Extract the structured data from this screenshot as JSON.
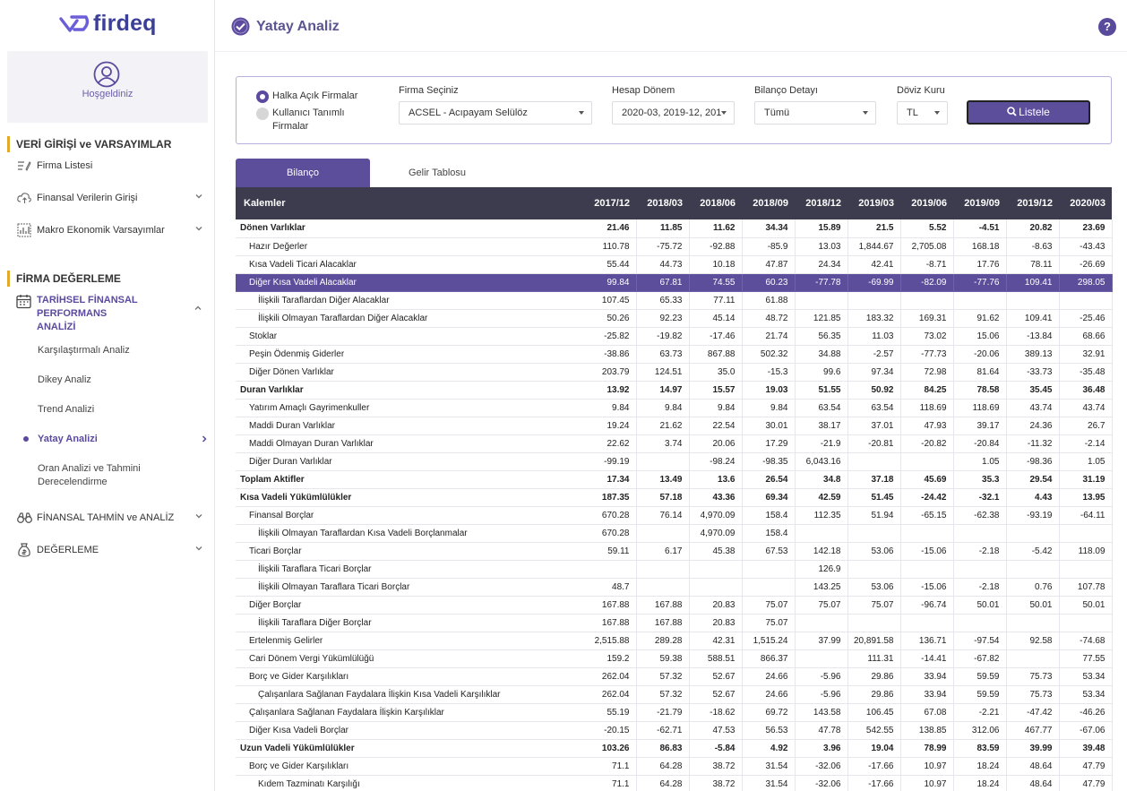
{
  "app": {
    "logo_text": "firdeq",
    "page_title": "Yatay Analiz",
    "help_label": "?"
  },
  "sidebar": {
    "welcome": "Hoşgeldiniz",
    "section1": "VERİ GİRİŞİ ve VARSAYIMLAR",
    "items1": [
      {
        "label": "Firma Listesi",
        "icon": "edit-list-icon"
      },
      {
        "label": "Finansal Verilerin Girişi",
        "icon": "cloud-upload-icon"
      },
      {
        "label": "Makro Ekonomik Varsayımlar",
        "icon": "chart-icon"
      }
    ],
    "section2": "FİRMA DEĞERLEME",
    "tfp_label": "TARİHSEL FİNANSAL PERFORMANS ANALİZİ",
    "subitems": [
      "Karşılaştırmalı Analiz",
      "Dikey Analiz",
      "Trend Analizi",
      "Yatay Analizi",
      "Oran Analizi ve Tahmini Derecelendirme"
    ],
    "items2": [
      {
        "label": "FİNANSAL TAHMİN ve ANALİZ",
        "icon": "binoculars-icon"
      },
      {
        "label": "DEĞERLEME",
        "icon": "money-bag-icon"
      }
    ]
  },
  "filter": {
    "radio1": "Halka Açık Firmalar",
    "radio2": "Kullanıcı Tanımlı Firmalar",
    "firma_label": "Firma Seçiniz",
    "firma_value": "ACSEL - Acıpayam Selülöz",
    "donem_label": "Hesap Dönem",
    "donem_value": "2020-03, 2019-12, 201",
    "bilanco_label": "Bilanço Detayı",
    "bilanco_value": "Tümü",
    "doviz_label": "Döviz Kuru",
    "doviz_value": "TL",
    "list_button": "Listele"
  },
  "tabs": [
    "Bilanço",
    "Gelir Tablosu"
  ],
  "table": {
    "headers": [
      "Kalemler",
      "2017/12",
      "2018/03",
      "2018/06",
      "2018/09",
      "2018/12",
      "2019/03",
      "2019/06",
      "2019/09",
      "2019/12",
      "2020/03"
    ],
    "rows": [
      {
        "label": "Dönen Varlıklar",
        "level": 0,
        "bold": true,
        "values": [
          "21.46",
          "11.85",
          "11.62",
          "34.34",
          "15.89",
          "21.5",
          "5.52",
          "-4.51",
          "20.82",
          "23.69"
        ]
      },
      {
        "label": "Hazır Değerler",
        "level": 1,
        "values": [
          "110.78",
          "-75.72",
          "-92.88",
          "-85.9",
          "13.03",
          "1,844.67",
          "2,705.08",
          "168.18",
          "-8.63",
          "-43.43"
        ]
      },
      {
        "label": "Kısa Vadeli Ticari Alacaklar",
        "level": 1,
        "values": [
          "55.44",
          "44.73",
          "10.18",
          "47.87",
          "24.34",
          "42.41",
          "-8.71",
          "17.76",
          "78.11",
          "-26.69"
        ]
      },
      {
        "label": "Diğer Kısa Vadeli Alacaklar",
        "level": 1,
        "highlight": true,
        "values": [
          "99.84",
          "67.81",
          "74.55",
          "60.23",
          "-77.78",
          "-69.99",
          "-82.09",
          "-77.76",
          "109.41",
          "298.05"
        ]
      },
      {
        "label": "İlişkili Taraflardan Diğer Alacaklar",
        "level": 2,
        "values": [
          "107.45",
          "65.33",
          "77.11",
          "61.88",
          "",
          "",
          "",
          "",
          "",
          ""
        ]
      },
      {
        "label": "İlişkili Olmayan Taraflardan Diğer Alacaklar",
        "level": 2,
        "values": [
          "50.26",
          "92.23",
          "45.14",
          "48.72",
          "121.85",
          "183.32",
          "169.31",
          "91.62",
          "109.41",
          "-25.46"
        ]
      },
      {
        "label": "Stoklar",
        "level": 1,
        "values": [
          "-25.82",
          "-19.82",
          "-17.46",
          "21.74",
          "56.35",
          "11.03",
          "73.02",
          "15.06",
          "-13.84",
          "68.66"
        ]
      },
      {
        "label": "Peşin Ödenmiş Giderler",
        "level": 1,
        "values": [
          "-38.86",
          "63.73",
          "867.88",
          "502.32",
          "34.88",
          "-2.57",
          "-77.73",
          "-20.06",
          "389.13",
          "32.91"
        ]
      },
      {
        "label": "Diğer Dönen Varlıklar",
        "level": 1,
        "values": [
          "203.79",
          "124.51",
          "35.0",
          "-15.3",
          "99.6",
          "97.34",
          "72.98",
          "81.64",
          "-33.73",
          "-35.48"
        ]
      },
      {
        "label": "Duran Varlıklar",
        "level": 0,
        "bold": true,
        "values": [
          "13.92",
          "14.97",
          "15.57",
          "19.03",
          "51.55",
          "50.92",
          "84.25",
          "78.58",
          "35.45",
          "36.48"
        ]
      },
      {
        "label": "Yatırım Amaçlı Gayrimenkuller",
        "level": 1,
        "values": [
          "9.84",
          "9.84",
          "9.84",
          "9.84",
          "63.54",
          "63.54",
          "118.69",
          "118.69",
          "43.74",
          "43.74"
        ]
      },
      {
        "label": "Maddi Duran Varlıklar",
        "level": 1,
        "values": [
          "19.24",
          "21.62",
          "22.54",
          "30.01",
          "38.17",
          "37.01",
          "47.93",
          "39.17",
          "24.36",
          "26.7"
        ]
      },
      {
        "label": "Maddi Olmayan Duran Varlıklar",
        "level": 1,
        "values": [
          "22.62",
          "3.74",
          "20.06",
          "17.29",
          "-21.9",
          "-20.81",
          "-20.82",
          "-20.84",
          "-11.32",
          "-2.14"
        ]
      },
      {
        "label": "Diğer Duran Varlıklar",
        "level": 1,
        "values": [
          "-99.19",
          "",
          "-98.24",
          "-98.35",
          "6,043.16",
          "",
          "",
          "1.05",
          "-98.36",
          "1.05"
        ]
      },
      {
        "label": "Toplam Aktifler",
        "level": 0,
        "bold": true,
        "values": [
          "17.34",
          "13.49",
          "13.6",
          "26.54",
          "34.8",
          "37.18",
          "45.69",
          "35.3",
          "29.54",
          "31.19"
        ]
      },
      {
        "label": "Kısa Vadeli Yükümlülükler",
        "level": 0,
        "bold": true,
        "values": [
          "187.35",
          "57.18",
          "43.36",
          "69.34",
          "42.59",
          "51.45",
          "-24.42",
          "-32.1",
          "4.43",
          "13.95"
        ]
      },
      {
        "label": "Finansal Borçlar",
        "level": 1,
        "values": [
          "670.28",
          "76.14",
          "4,970.09",
          "158.4",
          "112.35",
          "51.94",
          "-65.15",
          "-62.38",
          "-93.19",
          "-64.11"
        ]
      },
      {
        "label": "İlişkili Olmayan Taraflardan Kısa Vadeli Borçlanmalar",
        "level": 2,
        "values": [
          "670.28",
          "",
          "4,970.09",
          "158.4",
          "",
          "",
          "",
          "",
          "",
          ""
        ]
      },
      {
        "label": "Ticari Borçlar",
        "level": 1,
        "values": [
          "59.11",
          "6.17",
          "45.38",
          "67.53",
          "142.18",
          "53.06",
          "-15.06",
          "-2.18",
          "-5.42",
          "118.09"
        ]
      },
      {
        "label": "İlişkili Taraflara Ticari Borçlar",
        "level": 2,
        "values": [
          "",
          "",
          "",
          "",
          "126.9",
          "",
          "",
          "",
          "",
          ""
        ]
      },
      {
        "label": "İlişkili Olmayan Taraflara Ticari Borçlar",
        "level": 2,
        "values": [
          "48.7",
          "",
          "",
          "",
          "143.25",
          "53.06",
          "-15.06",
          "-2.18",
          "0.76",
          "107.78"
        ]
      },
      {
        "label": "Diğer Borçlar",
        "level": 1,
        "values": [
          "167.88",
          "167.88",
          "20.83",
          "75.07",
          "75.07",
          "75.07",
          "-96.74",
          "50.01",
          "50.01",
          "50.01"
        ]
      },
      {
        "label": "İlişkili Taraflara Diğer Borçlar",
        "level": 2,
        "values": [
          "167.88",
          "167.88",
          "20.83",
          "75.07",
          "",
          "",
          "",
          "",
          "",
          ""
        ]
      },
      {
        "label": "Ertelenmiş Gelirler",
        "level": 1,
        "values": [
          "2,515.88",
          "289.28",
          "42.31",
          "1,515.24",
          "37.99",
          "20,891.58",
          "136.71",
          "-97.54",
          "92.58",
          "-74.68"
        ]
      },
      {
        "label": "Cari Dönem Vergi Yükümlülüğü",
        "level": 1,
        "values": [
          "159.2",
          "59.38",
          "588.51",
          "866.37",
          "",
          "111.31",
          "-14.41",
          "-67.82",
          "",
          "77.55"
        ]
      },
      {
        "label": "Borç ve Gider Karşılıkları",
        "level": 1,
        "values": [
          "262.04",
          "57.32",
          "52.67",
          "24.66",
          "-5.96",
          "29.86",
          "33.94",
          "59.59",
          "75.73",
          "53.34"
        ]
      },
      {
        "label": "Çalışanlara Sağlanan Faydalara İlişkin Kısa Vadeli Karşılıklar",
        "level": 2,
        "values": [
          "262.04",
          "57.32",
          "52.67",
          "24.66",
          "-5.96",
          "29.86",
          "33.94",
          "59.59",
          "75.73",
          "53.34"
        ]
      },
      {
        "label": "Çalışanlara Sağlanan Faydalara İlişkin Karşılıklar",
        "level": 1,
        "values": [
          "55.19",
          "-21.79",
          "-18.62",
          "69.72",
          "143.58",
          "106.45",
          "67.08",
          "-2.21",
          "-47.42",
          "-46.26"
        ]
      },
      {
        "label": "Diğer Kısa Vadeli Borçlar",
        "level": 1,
        "values": [
          "-20.15",
          "-62.71",
          "47.53",
          "56.53",
          "47.78",
          "542.55",
          "138.85",
          "312.06",
          "467.77",
          "-67.06"
        ]
      },
      {
        "label": "Uzun Vadeli Yükümlülükler",
        "level": 0,
        "bold": true,
        "values": [
          "103.26",
          "86.83",
          "-5.84",
          "4.92",
          "3.96",
          "19.04",
          "78.99",
          "83.59",
          "39.99",
          "39.48"
        ]
      },
      {
        "label": "Borç ve Gider Karşılıkları",
        "level": 1,
        "values": [
          "71.1",
          "64.28",
          "38.72",
          "31.54",
          "-32.06",
          "-17.66",
          "10.97",
          "18.24",
          "48.64",
          "47.79"
        ]
      },
      {
        "label": "Kıdem Tazminatı Karşılığı",
        "level": 2,
        "values": [
          "71.1",
          "64.28",
          "38.72",
          "31.54",
          "-32.06",
          "-17.66",
          "10.97",
          "18.24",
          "48.64",
          "47.79"
        ]
      }
    ]
  },
  "colors": {
    "accent": "#5d4e9b",
    "header_bg": "#3d3c4f",
    "section_bar": "#e3a92a"
  }
}
